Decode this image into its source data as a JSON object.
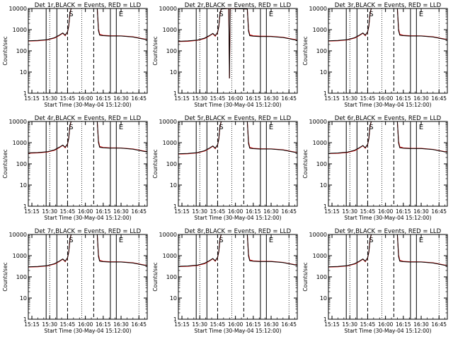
{
  "chart_data": {
    "type": "line",
    "layout": "3x3 grid",
    "title_suffix": ",BLACK = Events, RED = LLD",
    "ylabel": "Counts/sec",
    "y_scale": "log",
    "ylim": [
      1,
      10000
    ],
    "y_ticks": [
      "1",
      "10",
      "100",
      "1000",
      "10000"
    ],
    "x_ticks": [
      "15:15",
      "15:30",
      "15:45",
      "16:00",
      "16:15",
      "16:30",
      "16:45"
    ],
    "xlim_minutes": [
      12,
      112
    ],
    "tick_minutes": [
      15,
      30,
      45,
      60,
      75,
      90,
      105
    ],
    "markers": {
      "S": 48,
      "E": 90
    },
    "solid_lines": [
      27,
      36,
      81,
      86
    ],
    "dashed_lines": [
      45,
      67
    ],
    "dotted_lines": [
      30,
      57,
      105
    ],
    "series_colors": {
      "events": "#000000",
      "lld": "#dd0000"
    },
    "profile": {
      "minutes": [
        12,
        20,
        28,
        34,
        38,
        41,
        43,
        45,
        46,
        47,
        48,
        70,
        71,
        72,
        75,
        80,
        90,
        100,
        112
      ],
      "events": [
        300,
        310,
        340,
        420,
        550,
        700,
        550,
        800,
        1500,
        6000,
        10000,
        10000,
        900,
        550,
        520,
        500,
        500,
        450,
        330
      ],
      "lld": [
        290,
        300,
        330,
        400,
        530,
        680,
        520,
        780,
        1450,
        5800,
        10000,
        10000,
        1100,
        600,
        540,
        520,
        510,
        460,
        340
      ]
    },
    "panels": [
      {
        "title": "Det 1r",
        "xlabel": "Start Time (30-May-04 15:12:00)",
        "scale": 1.0
      },
      {
        "title": "Det 2r",
        "xlabel": "Start Time (30-May-04 15:12:00)",
        "scale": 0.95,
        "dip": {
          "minute": 55,
          "value": 5
        }
      },
      {
        "title": "Det 3r",
        "xlabel": "Start Time (30-May-04 15:12:00)",
        "scale": 1.0
      },
      {
        "title": "Det 4r",
        "xlabel": "Start Time (30-May-04 15:12:00)",
        "scale": 1.1
      },
      {
        "title": "Det 5r",
        "xlabel": "Start Time (30-May-04 15:12:00)",
        "scale": 1.0
      },
      {
        "title": "Det 6r",
        "xlabel": "Start Time (30-May-04 15:12:00)",
        "scale": 1.05
      },
      {
        "title": "Det 7r",
        "xlabel": "Start Time (30-May-04 15:12:00)",
        "scale": 1.0
      },
      {
        "title": "Det 8r",
        "xlabel": "Start Time (30-May-04 15:12:00)",
        "scale": 1.05
      },
      {
        "title": "Det 9r",
        "xlabel": "Start Time (30-May-04 15:12:00)",
        "scale": 1.0
      }
    ]
  }
}
